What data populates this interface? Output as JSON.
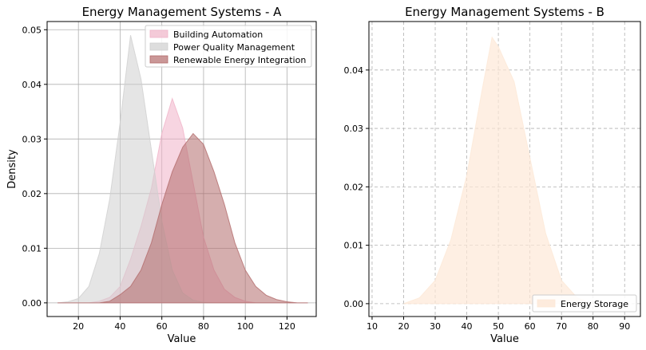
{
  "chart_data": [
    {
      "type": "area",
      "title": "Energy Management Systems - A",
      "xlabel": "Value",
      "ylabel": "Density",
      "xlim": [
        5,
        134
      ],
      "ylim": [
        -0.0025,
        0.0515
      ],
      "xticks": [
        20,
        40,
        60,
        80,
        100,
        120
      ],
      "yticks": [
        0.0,
        0.01,
        0.02,
        0.03,
        0.04,
        0.05
      ],
      "ytick_labels": [
        "0.00",
        "0.01",
        "0.02",
        "0.03",
        "0.04",
        "0.05"
      ],
      "grid": true,
      "grid_style": "solid",
      "legend_position": "top-right",
      "x": [
        10,
        15,
        20,
        25,
        30,
        35,
        40,
        45,
        50,
        55,
        60,
        65,
        70,
        75,
        80,
        85,
        90,
        95,
        100,
        105,
        110,
        115,
        120,
        125,
        130
      ],
      "series": [
        {
          "name": "Building Automation",
          "color": "#f0b3c8",
          "values": [
            0,
            0,
            0,
            0,
            0.0003,
            0.001,
            0.003,
            0.008,
            0.014,
            0.021,
            0.031,
            0.0374,
            0.032,
            0.022,
            0.012,
            0.006,
            0.0025,
            0.001,
            0.0003,
            0,
            0,
            0,
            0,
            0,
            0
          ]
        },
        {
          "name": "Power Quality Management",
          "color": "#cfcfcf",
          "values": [
            0,
            0.0002,
            0.0008,
            0.003,
            0.009,
            0.019,
            0.033,
            0.049,
            0.041,
            0.028,
            0.015,
            0.006,
            0.0018,
            0.0005,
            0.0001,
            0,
            0,
            0,
            0,
            0,
            0,
            0,
            0,
            0,
            0
          ]
        },
        {
          "name": "Renewable Energy Integration",
          "color": "#b36b6b",
          "values": [
            0,
            0,
            0,
            0,
            0,
            0.0003,
            0.0015,
            0.003,
            0.006,
            0.011,
            0.018,
            0.024,
            0.0285,
            0.031,
            0.029,
            0.024,
            0.018,
            0.011,
            0.006,
            0.003,
            0.0014,
            0.0006,
            0.0002,
            0,
            0
          ]
        }
      ]
    },
    {
      "type": "area",
      "title": "Energy Management Systems - B",
      "xlabel": "Value",
      "ylabel": "",
      "xlim": [
        9,
        95
      ],
      "ylim": [
        -0.0022,
        0.0483
      ],
      "xticks": [
        10,
        20,
        30,
        40,
        50,
        60,
        70,
        80,
        90
      ],
      "yticks": [
        0.0,
        0.01,
        0.02,
        0.03,
        0.04
      ],
      "ytick_labels": [
        "0.00",
        "0.01",
        "0.02",
        "0.03",
        "0.04"
      ],
      "grid": true,
      "grid_style": "dashed",
      "legend_position": "bottom-right",
      "x": [
        20,
        25,
        30,
        35,
        40,
        45,
        48,
        50,
        55,
        60,
        65,
        70,
        75,
        80
      ],
      "series": [
        {
          "name": "Energy Storage",
          "color": "#fde8d7",
          "values": [
            0,
            0.001,
            0.004,
            0.011,
            0.022,
            0.037,
            0.0456,
            0.044,
            0.038,
            0.025,
            0.012,
            0.004,
            0.001,
            0
          ]
        }
      ]
    }
  ]
}
